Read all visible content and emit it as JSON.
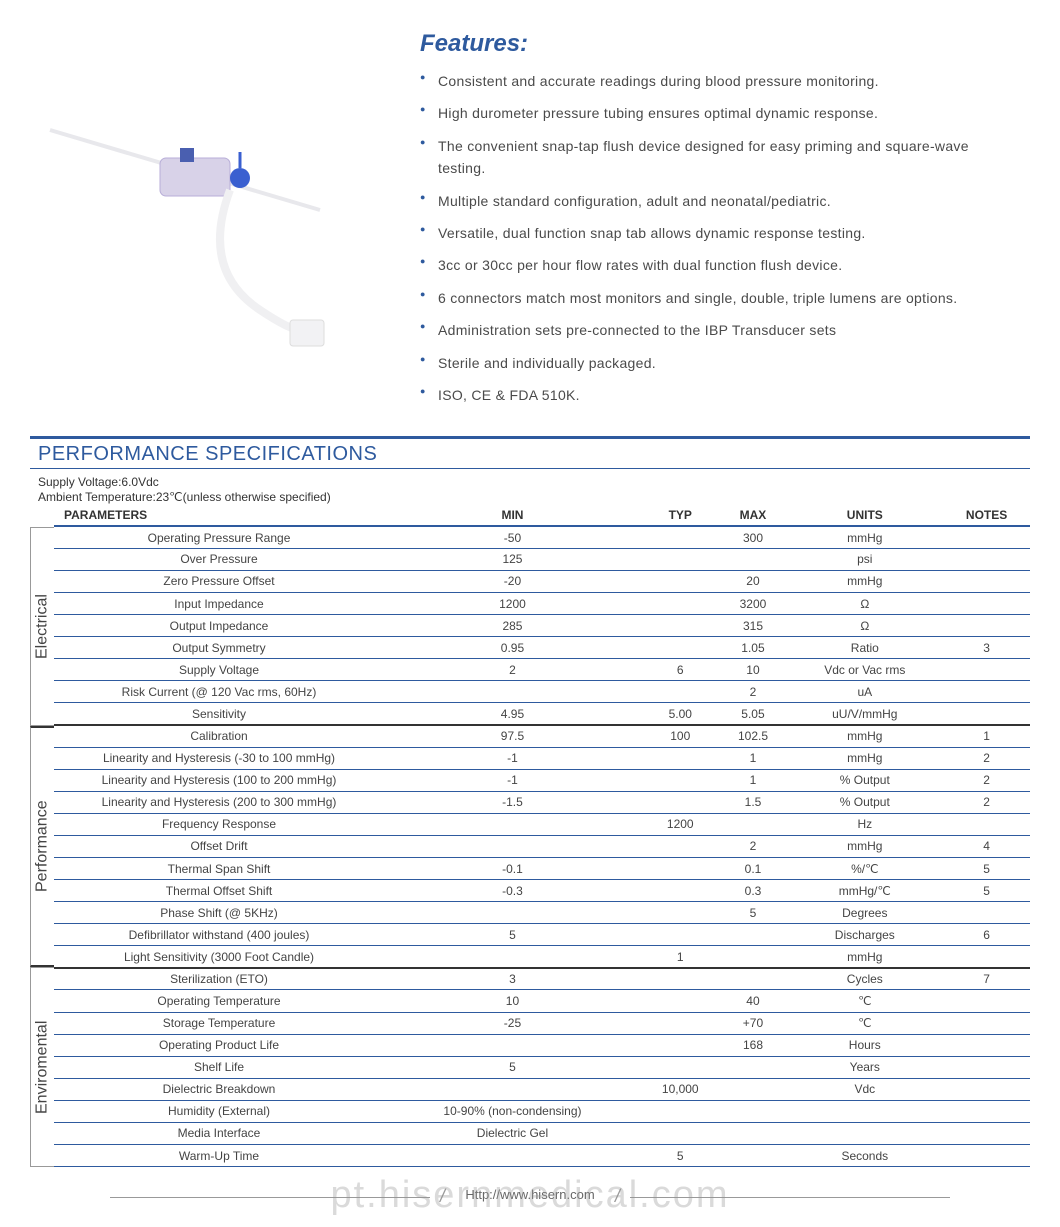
{
  "features": {
    "title": "Features:",
    "items": [
      "Consistent and accurate readings during blood pressure monitoring.",
      "High durometer pressure tubing ensures optimal dynamic response.",
      "The convenient snap-tap flush device designed for easy priming and square-wave testing.",
      "Multiple standard configuration, adult and neonatal/pediatric.",
      "Versatile, dual function snap tab allows dynamic response testing.",
      "3cc or 30cc per hour flow rates with dual function flush device.",
      "6 connectors match most monitors and single, double, triple lumens are options.",
      "Administration sets pre-connected to the IBP Transducer sets",
      "Sterile and individually packaged.",
      "ISO, CE & FDA 510K."
    ]
  },
  "spec": {
    "title": "PERFORMANCE SPECIFICATIONS",
    "meta1": "Supply Voltage:6.0Vdc",
    "meta2": "Ambient Temperature:23℃(unless otherwise specified)",
    "headers": {
      "param": "PARAMETERS",
      "min": "MIN",
      "typ": "TYP",
      "max": "MAX",
      "units": "UNITS",
      "notes": "NOTES"
    },
    "sections": [
      {
        "label": "Electrical",
        "cls": "electrical"
      },
      {
        "label": "Performance",
        "cls": "performance"
      },
      {
        "label": "Enviromental",
        "cls": "enviromental"
      }
    ],
    "rows": [
      {
        "s": 0,
        "p": "Operating Pressure Range",
        "min": "-50",
        "typ": "",
        "max": "300",
        "u": "mmHg",
        "n": ""
      },
      {
        "s": 0,
        "p": "Over  Pressure",
        "min": "125",
        "typ": "",
        "max": "",
        "u": "psi",
        "n": ""
      },
      {
        "s": 0,
        "p": "Zero Pressure Offset",
        "min": "-20",
        "typ": "",
        "max": "20",
        "u": "mmHg",
        "n": ""
      },
      {
        "s": 0,
        "p": "Input Impedance",
        "min": "1200",
        "typ": "",
        "max": "3200",
        "u": "Ω",
        "n": ""
      },
      {
        "s": 0,
        "p": "Output Impedance",
        "min": "285",
        "typ": "",
        "max": "315",
        "u": "Ω",
        "n": ""
      },
      {
        "s": 0,
        "p": "Output Symmetry",
        "min": "0.95",
        "typ": "",
        "max": "1.05",
        "u": "Ratio",
        "n": "3"
      },
      {
        "s": 0,
        "p": "Supply Voltage",
        "min": "2",
        "typ": "6",
        "max": "10",
        "u": "Vdc or Vac rms",
        "n": ""
      },
      {
        "s": 0,
        "p": "Risk Current (@ 120 Vac rms, 60Hz)",
        "min": "",
        "typ": "",
        "max": "2",
        "u": "uA",
        "n": ""
      },
      {
        "s": 0,
        "p": "Sensitivity",
        "min": "4.95",
        "typ": "5.00",
        "max": "5.05",
        "u": "uU/V/mmHg",
        "n": ""
      },
      {
        "s": 1,
        "p": "Calibration",
        "min": "97.5",
        "typ": "100",
        "max": "102.5",
        "u": "mmHg",
        "n": "1"
      },
      {
        "s": 1,
        "p": "Linearity and Hysteresis (-30 to 100 mmHg)",
        "min": "-1",
        "typ": "",
        "max": "1",
        "u": "mmHg",
        "n": "2"
      },
      {
        "s": 1,
        "p": "Linearity and Hysteresis (100 to 200 mmHg)",
        "min": "-1",
        "typ": "",
        "max": "1",
        "u": "% Output",
        "n": "2"
      },
      {
        "s": 1,
        "p": "Linearity and Hysteresis (200 to 300 mmHg)",
        "min": "-1.5",
        "typ": "",
        "max": "1.5",
        "u": "% Output",
        "n": "2"
      },
      {
        "s": 1,
        "p": "Frequency Response",
        "min": "",
        "typ": "1200",
        "max": "",
        "u": "Hz",
        "n": ""
      },
      {
        "s": 1,
        "p": "Offset Drift",
        "min": "",
        "typ": "",
        "max": "2",
        "u": "mmHg",
        "n": "4"
      },
      {
        "s": 1,
        "p": "Thermal Span Shift",
        "min": "-0.1",
        "typ": "",
        "max": "0.1",
        "u": "%/℃",
        "n": "5"
      },
      {
        "s": 1,
        "p": "Thermal Offset Shift",
        "min": "-0.3",
        "typ": "",
        "max": "0.3",
        "u": "mmHg/℃",
        "n": "5"
      },
      {
        "s": 1,
        "p": "Phase Shift (@ 5KHz)",
        "min": "",
        "typ": "",
        "max": "5",
        "u": "Degrees",
        "n": ""
      },
      {
        "s": 1,
        "p": "Defibrillator withstand (400 joules)",
        "min": "5",
        "typ": "",
        "max": "",
        "u": "Discharges",
        "n": "6"
      },
      {
        "s": 1,
        "p": "Light Sensitivity (3000 Foot Candle)",
        "min": "",
        "typ": "1",
        "max": "",
        "u": "mmHg",
        "n": ""
      },
      {
        "s": 2,
        "p": "Sterilization (ETO)",
        "min": "3",
        "typ": "",
        "max": "",
        "u": "Cycles",
        "n": "7"
      },
      {
        "s": 2,
        "p": "Operating Temperature",
        "min": "10",
        "typ": "",
        "max": "40",
        "u": "℃",
        "n": ""
      },
      {
        "s": 2,
        "p": "Storage Temperature",
        "min": "-25",
        "typ": "",
        "max": "+70",
        "u": "℃",
        "n": ""
      },
      {
        "s": 2,
        "p": "Operating Product Life",
        "min": "",
        "typ": "",
        "max": "168",
        "u": "Hours",
        "n": ""
      },
      {
        "s": 2,
        "p": "Shelf Life",
        "min": "5",
        "typ": "",
        "max": "",
        "u": "Years",
        "n": ""
      },
      {
        "s": 2,
        "p": "Dielectric Breakdown",
        "min": "",
        "typ": "10,000",
        "max": "",
        "u": "Vdc",
        "n": ""
      },
      {
        "s": 2,
        "p": "Humidity (External)",
        "min": "10-90% (non-condensing)",
        "typ": "",
        "max": "",
        "u": "",
        "n": ""
      },
      {
        "s": 2,
        "p": "Media Interface",
        "min": "Dielectric Gel",
        "typ": "",
        "max": "",
        "u": "",
        "n": ""
      },
      {
        "s": 2,
        "p": "Warm-Up Time",
        "min": "",
        "typ": "5",
        "max": "",
        "u": "Seconds",
        "n": ""
      }
    ]
  },
  "footer": {
    "url": "Http://www.hisern.com",
    "watermark": "pt.hisernmedical.com"
  },
  "colors": {
    "brand": "#2e5a9e",
    "text": "#444444"
  }
}
